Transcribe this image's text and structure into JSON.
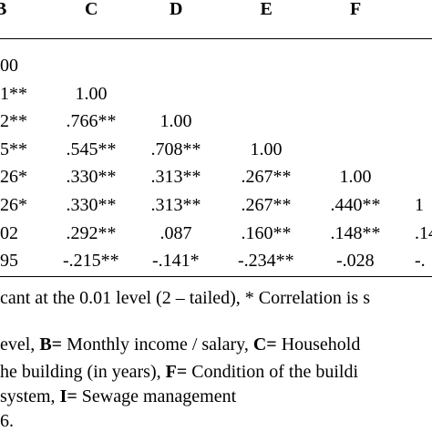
{
  "table": {
    "columns": [
      "B",
      "C",
      "D",
      "E",
      "F"
    ],
    "rows": [
      [
        "00"
      ],
      [
        "1**",
        "1.00"
      ],
      [
        "2**",
        ".766**",
        "1.00"
      ],
      [
        "5**",
        ".545**",
        ".708**",
        "1.00"
      ],
      [
        "26*",
        ".330**",
        ".313**",
        ".267**",
        "1.00"
      ],
      [
        "26*",
        ".330**",
        ".313**",
        ".267**",
        ".440**",
        "1"
      ],
      [
        "02",
        ".292**",
        ".087",
        ".160**",
        ".148**",
        ".14"
      ],
      [
        "95",
        "-.215**",
        "-.141*",
        "-.234**",
        "-.028",
        "-."
      ]
    ]
  },
  "notes": [
    [
      {
        "text": "cant at the 0.01 level (2 – tailed), * Correlation is s",
        "bold": false
      }
    ],
    [
      {
        "text": "evel, ",
        "bold": false
      },
      {
        "text": "B=",
        "bold": true
      },
      {
        "text": " Monthly income / salary, ",
        "bold": false
      },
      {
        "text": "C=",
        "bold": true
      },
      {
        "text": " Household",
        "bold": false
      }
    ],
    [
      {
        "text": "he building (in years), ",
        "bold": false
      },
      {
        "text": "F=",
        "bold": true
      },
      {
        "text": " Condition of the buildi",
        "bold": false
      }
    ],
    [
      {
        "text": "system, ",
        "bold": false
      },
      {
        "text": "I=",
        "bold": true
      },
      {
        "text": " Sewage management",
        "bold": false
      }
    ],
    [
      {
        "text": "6.",
        "bold": false
      }
    ]
  ]
}
